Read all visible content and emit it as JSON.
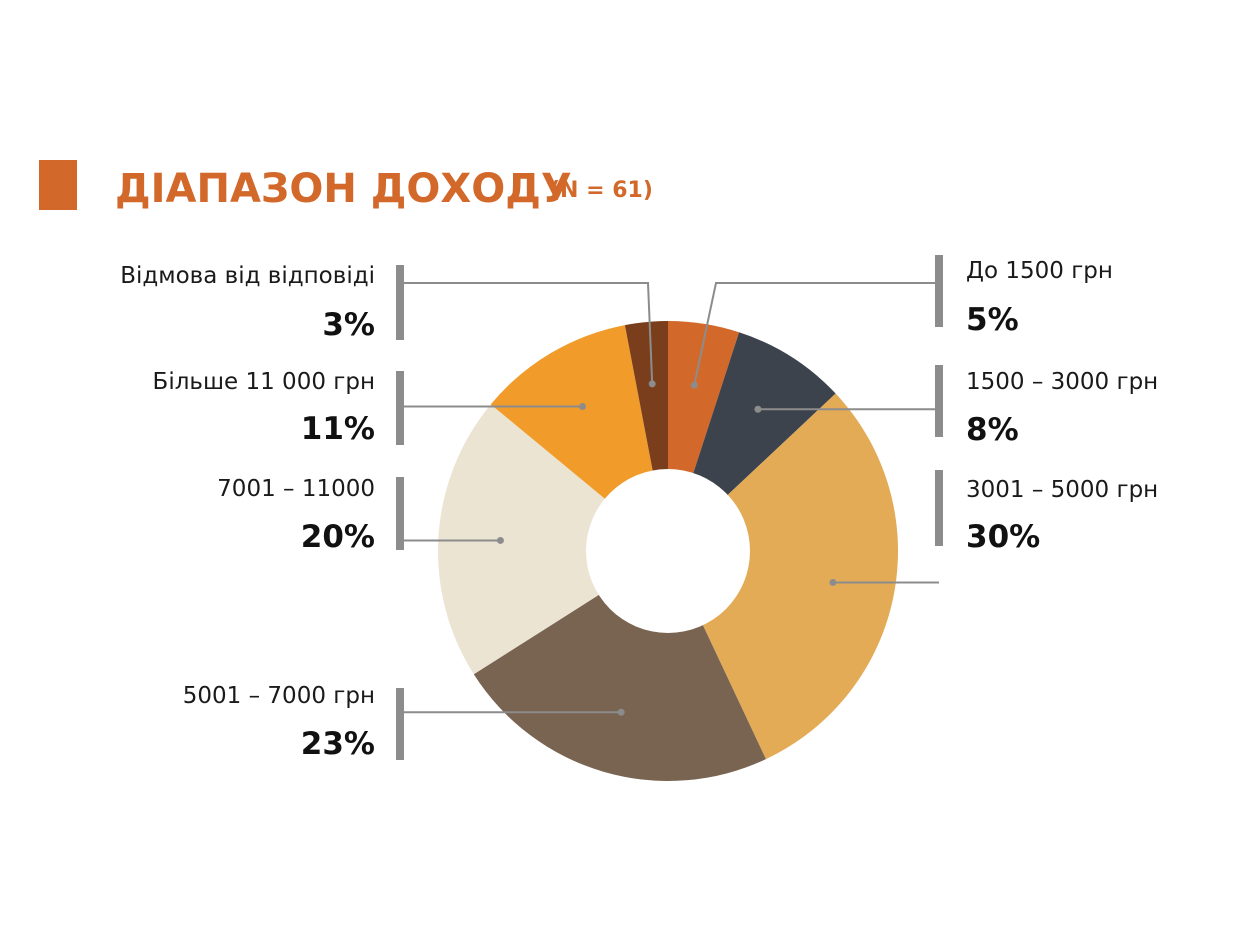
{
  "header": {
    "title": "ДІАПАЗОН ДОХОДУ",
    "subtitle": "(N = 61)",
    "title_color": "#d2692a",
    "marker_color": "#d2692a"
  },
  "chart_data": {
    "type": "pie",
    "title": "ДІАПАЗОН ДОХОДУ",
    "subtitle": "(N = 61)",
    "donut": true,
    "unit": "%",
    "start": "12 o'clock",
    "direction": "clockwise",
    "slices": [
      {
        "label": "До 1500 грн",
        "value": 5,
        "display": "5%",
        "color": "#d2692a"
      },
      {
        "label": "1500 – 3000 грн",
        "value": 8,
        "display": "8%",
        "color": "#3d434c"
      },
      {
        "label": "3001 – 5000 грн",
        "value": 30,
        "display": "30%",
        "color": "#e3ab56"
      },
      {
        "label": "5001 – 7000 грн",
        "value": 23,
        "display": "23%",
        "color": "#796452"
      },
      {
        "label": "7001 – 11000",
        "value": 20,
        "display": "20%",
        "color": "#ebe4d2"
      },
      {
        "label": "Більше 11 000 грн",
        "value": 11,
        "display": "11%",
        "color": "#f19c2a"
      },
      {
        "label": "Відмова від відповіді",
        "value": 3,
        "display": "3%",
        "color": "#7a3e1c"
      }
    ]
  }
}
